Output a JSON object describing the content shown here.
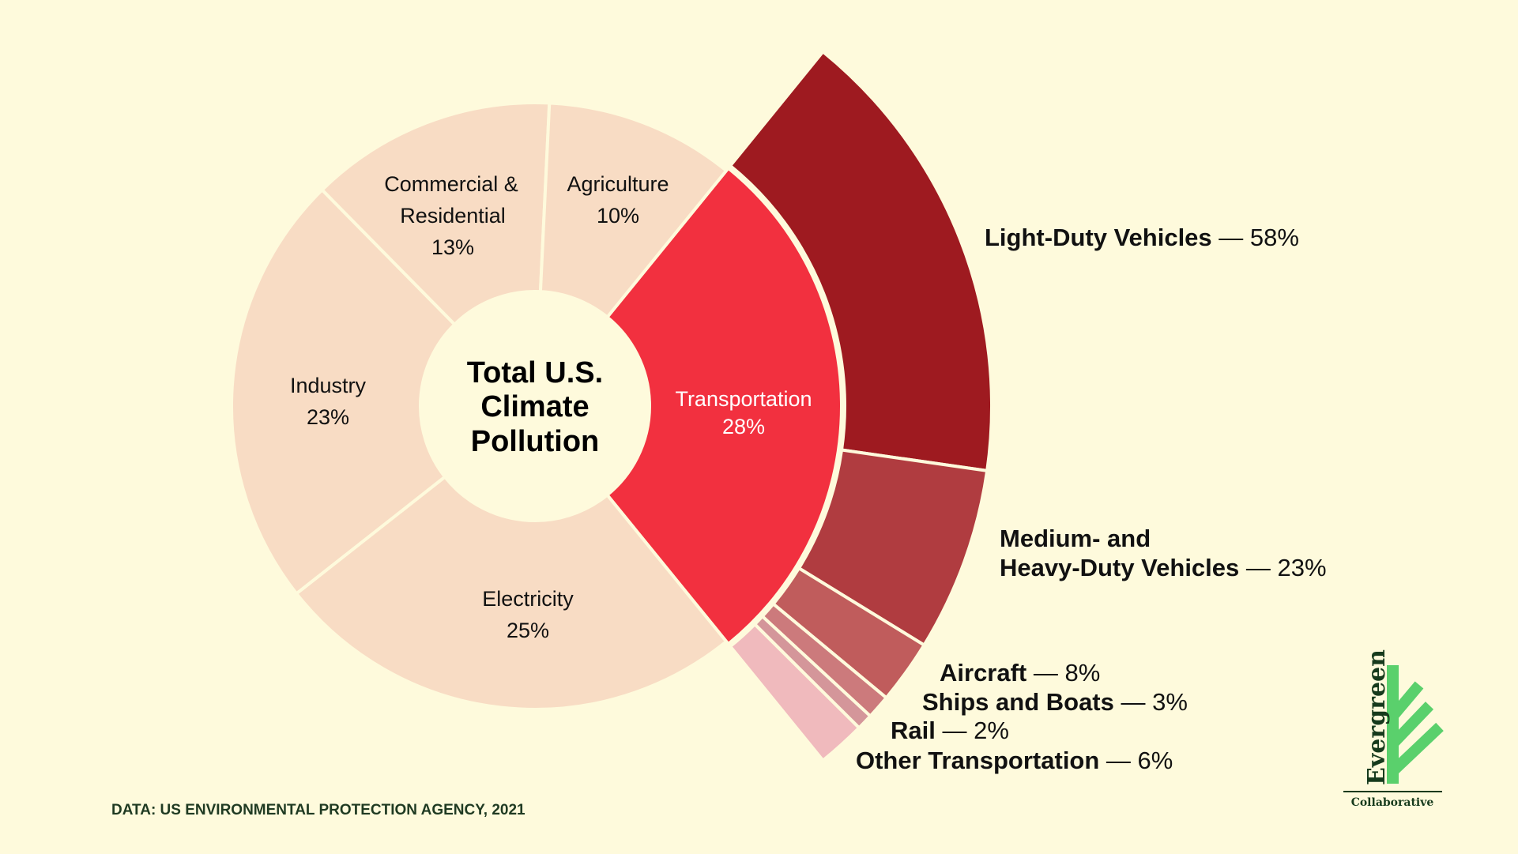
{
  "chart_data": {
    "type": "pie",
    "subtype": "sunburst-donut",
    "center_label": [
      "Total U.S.",
      "Climate",
      "Pollution"
    ],
    "sectors": [
      {
        "label": [
          "Transportation"
        ],
        "value": 28,
        "value_label": "28%",
        "color": "#f2303f",
        "text_color": "#ffffff"
      },
      {
        "label": [
          "Electricity"
        ],
        "value": 25,
        "value_label": "25%",
        "color": "#f8dcc4",
        "text_color": "#111111"
      },
      {
        "label": [
          "Industry"
        ],
        "value": 23,
        "value_label": "23%",
        "color": "#f8dcc4",
        "text_color": "#111111"
      },
      {
        "label": [
          "Commercial &",
          "Residential"
        ],
        "value": 13,
        "value_label": "13%",
        "color": "#f8dcc4",
        "text_color": "#111111"
      },
      {
        "label": [
          "Agriculture"
        ],
        "value": 10,
        "value_label": "10%",
        "color": "#f8dcc4",
        "text_color": "#111111"
      }
    ],
    "transportation_breakdown": [
      {
        "label": [
          "Light-Duty Vehicles"
        ],
        "value": 58,
        "value_label": " — 58%",
        "color": "#9e1a20"
      },
      {
        "label": [
          "Medium- and",
          "Heavy-Duty Vehicles"
        ],
        "value": 23,
        "value_label": " — 23%",
        "color": "#b03c40"
      },
      {
        "label": [
          "Aircraft"
        ],
        "value": 8,
        "value_label": " — 8%",
        "color": "#c05c5c"
      },
      {
        "label": [
          "Ships and Boats"
        ],
        "value": 3,
        "value_label": " — 3%",
        "color": "#cc7a7c"
      },
      {
        "label": [
          "Rail"
        ],
        "value": 2,
        "value_label": " — 2%",
        "color": "#d4969a"
      },
      {
        "label": [
          "Other Transportation"
        ],
        "value": 6,
        "value_label": " — 6%",
        "color": "#f0babd"
      }
    ],
    "source": "DATA: US ENVIRONMENTAL PROTECTION AGENCY, 2021",
    "background_color": "#fefadc"
  },
  "logo": {
    "name": "Evergreen",
    "tagline": "Collaborative",
    "color": "#5ad06c",
    "text_color": "#163a1c"
  }
}
